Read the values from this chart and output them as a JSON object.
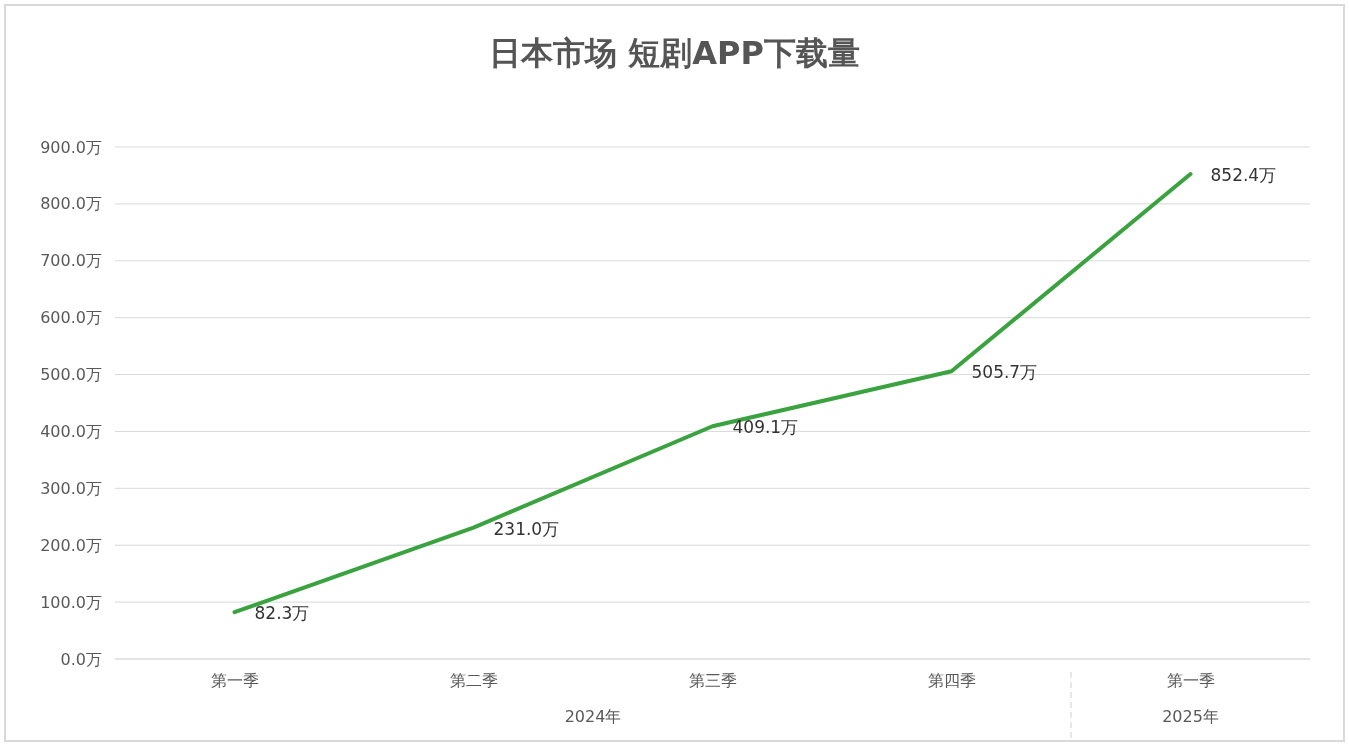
{
  "chart_data": {
    "type": "line",
    "title": "日本市场 短剧APP下载量",
    "categories": [
      "第一季",
      "第二季",
      "第三季",
      "第四季",
      "第一季"
    ],
    "series": [
      {
        "color": "#3aa33f",
        "values": [
          82.3,
          231.0,
          409.1,
          505.7,
          852.4
        ],
        "value_labels": [
          "82.3万",
          "231.0万",
          "409.1万",
          "505.7万",
          "852.4万"
        ]
      }
    ],
    "ylim": [
      0,
      900
    ],
    "yticks": [
      {
        "value": 0,
        "label": "0.0万"
      },
      {
        "value": 100,
        "label": "100.0万"
      },
      {
        "value": 200,
        "label": "200.0万"
      },
      {
        "value": 300,
        "label": "300.0万"
      },
      {
        "value": 400,
        "label": "400.0万"
      },
      {
        "value": 500,
        "label": "500.0万"
      },
      {
        "value": 600,
        "label": "600.0万"
      },
      {
        "value": 700,
        "label": "700.0万"
      },
      {
        "value": 800,
        "label": "800.0万"
      },
      {
        "value": 900,
        "label": "900.0万"
      }
    ],
    "grid": "y",
    "marker": "none",
    "line_style": "solid",
    "annotations": [
      "2024年",
      "2025年"
    ]
  }
}
